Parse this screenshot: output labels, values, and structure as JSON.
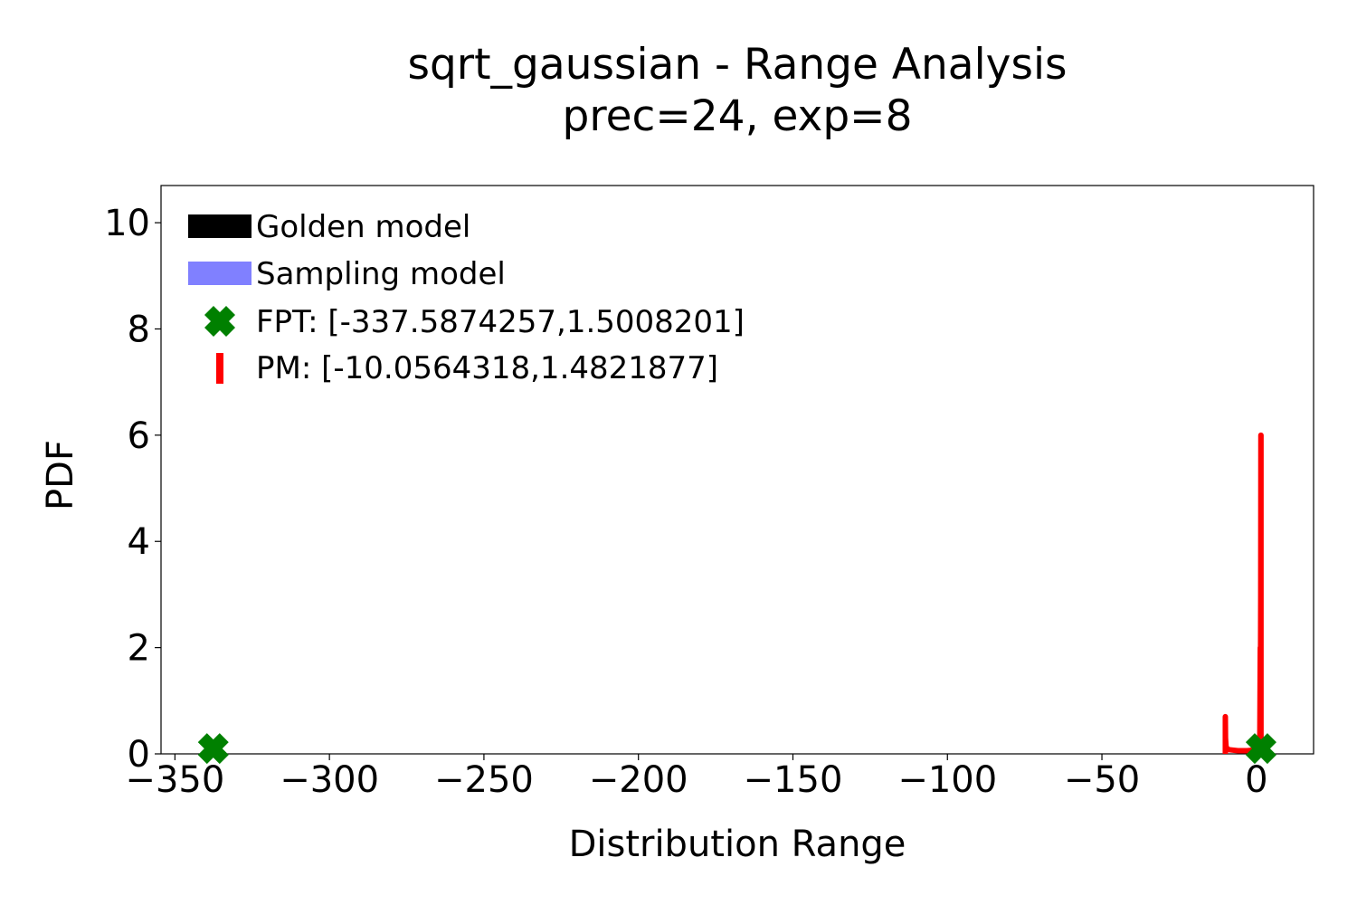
{
  "chart_data": {
    "type": "line",
    "title_line1": "sqrt_gaussian - Range Analysis",
    "title_line2": "prec=24, exp=8",
    "xlabel": "Distribution Range",
    "ylabel": "PDF",
    "xlim": [
      -354.5,
      18.5
    ],
    "ylim": [
      0,
      10.7
    ],
    "x_ticks": [
      -350,
      -300,
      -250,
      -200,
      -150,
      -100,
      -50,
      0
    ],
    "x_tick_labels": [
      "−350",
      "−300",
      "−250",
      "−200",
      "−150",
      "−100",
      "−50",
      "0"
    ],
    "y_ticks": [
      0,
      2,
      4,
      6,
      8,
      10
    ],
    "y_tick_labels": [
      "0",
      "2",
      "4",
      "6",
      "8",
      "10"
    ],
    "grid": false,
    "legend_position": "top-left",
    "series": [
      {
        "name": "Golden model",
        "kind": "band",
        "color": "#000000",
        "points": []
      },
      {
        "name": "Sampling model",
        "kind": "band",
        "color": "#8080ff",
        "points": []
      },
      {
        "name": "FPT: [-337.5874257,1.5008201]",
        "kind": "marker",
        "marker": "X",
        "color": "#008000",
        "points": [
          [
            -337.5874257,
            0.1
          ],
          [
            1.5008201,
            0.1
          ]
        ]
      },
      {
        "name": "PM: [-10.0564318,1.4821877]",
        "kind": "line",
        "color": "#ff0000",
        "points": [
          [
            -10.0564318,
            0
          ],
          [
            -10.0564318,
            0.7
          ],
          [
            -10.0,
            0.3
          ],
          [
            -9.8,
            0.12
          ],
          [
            -9.0,
            0.08
          ],
          [
            -6.0,
            0.06
          ],
          [
            -3.0,
            0.06
          ],
          [
            -1.0,
            0.07
          ],
          [
            0.0,
            0.08
          ],
          [
            0.8,
            0.1
          ],
          [
            1.1,
            0.3
          ],
          [
            1.25,
            2.0
          ],
          [
            1.3,
            1.0
          ],
          [
            1.4,
            3.0
          ],
          [
            1.45,
            6.0
          ],
          [
            1.4821877,
            6.0
          ],
          [
            1.4821877,
            0
          ]
        ]
      }
    ]
  }
}
